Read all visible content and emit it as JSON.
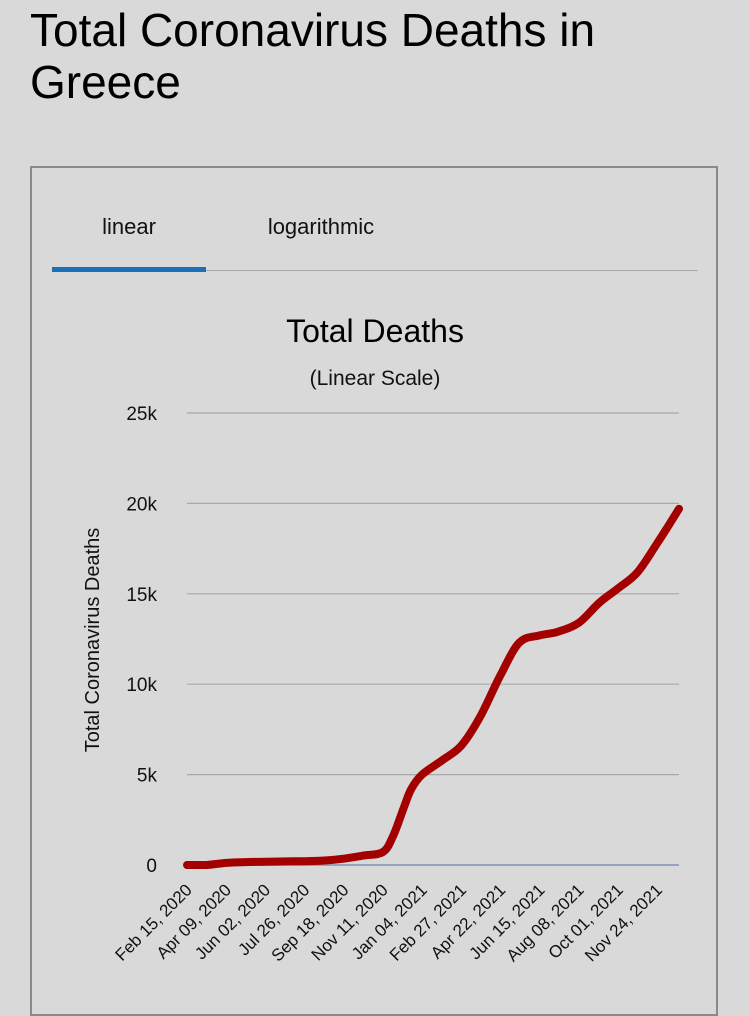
{
  "page": {
    "title": "Total Coronavirus Deaths in Greece"
  },
  "tabs": [
    {
      "label": "linear",
      "active": true
    },
    {
      "label": "logarithmic",
      "active": false
    }
  ],
  "colors": {
    "line": "#a30000",
    "tab_active": "#1a6fb8",
    "grid": "#a8a8a8",
    "baseline": "#7f8fb8"
  },
  "chart_data": {
    "type": "line",
    "title": "Total Deaths",
    "subtitle": "(Linear Scale)",
    "ylabel": "Total Coronavirus Deaths",
    "xlabel": "",
    "ylim": [
      0,
      25000
    ],
    "yticks": [
      0,
      5000,
      10000,
      15000,
      20000,
      25000
    ],
    "ytick_labels": [
      "0",
      "5k",
      "10k",
      "15k",
      "20k",
      "25k"
    ],
    "xtick_labels": [
      "Feb 15, 2020",
      "Apr 09, 2020",
      "Jun 02, 2020",
      "Jul 26, 2020",
      "Sep 18, 2020",
      "Nov 11, 2020",
      "Jan 04, 2021",
      "Feb 27, 2021",
      "Apr 22, 2021",
      "Jun 15, 2021",
      "Aug 08, 2021",
      "Oct 01, 2021",
      "Nov 24, 2021"
    ],
    "grid": true,
    "series": [
      {
        "x": [
          "Feb 15, 2020",
          "Mar 15, 2020",
          "Apr 09, 2020",
          "May 05, 2020",
          "Jun 02, 2020",
          "Jul 01, 2020",
          "Jul 26, 2020",
          "Aug 20, 2020",
          "Sep 18, 2020",
          "Oct 15, 2020",
          "Nov 11, 2020",
          "Nov 25, 2020",
          "Dec 10, 2020",
          "Dec 20, 2020",
          "Jan 04, 2021",
          "Feb 01, 2021",
          "Feb 27, 2021",
          "Mar 25, 2021",
          "Apr 22, 2021",
          "May 18, 2021",
          "Jun 15, 2021",
          "Jul 10, 2021",
          "Aug 08, 2021",
          "Sep 05, 2021",
          "Oct 01, 2021",
          "Oct 28, 2021",
          "Nov 24, 2021",
          "Dec 10, 2021",
          "Dec 24, 2021"
        ],
        "values": [
          0,
          10,
          120,
          160,
          180,
          200,
          210,
          240,
          350,
          520,
          720,
          1600,
          3200,
          4200,
          5000,
          5800,
          6600,
          8200,
          10500,
          12300,
          12700,
          12900,
          13400,
          14500,
          15300,
          16200,
          17800,
          18800,
          19700
        ]
      }
    ]
  }
}
